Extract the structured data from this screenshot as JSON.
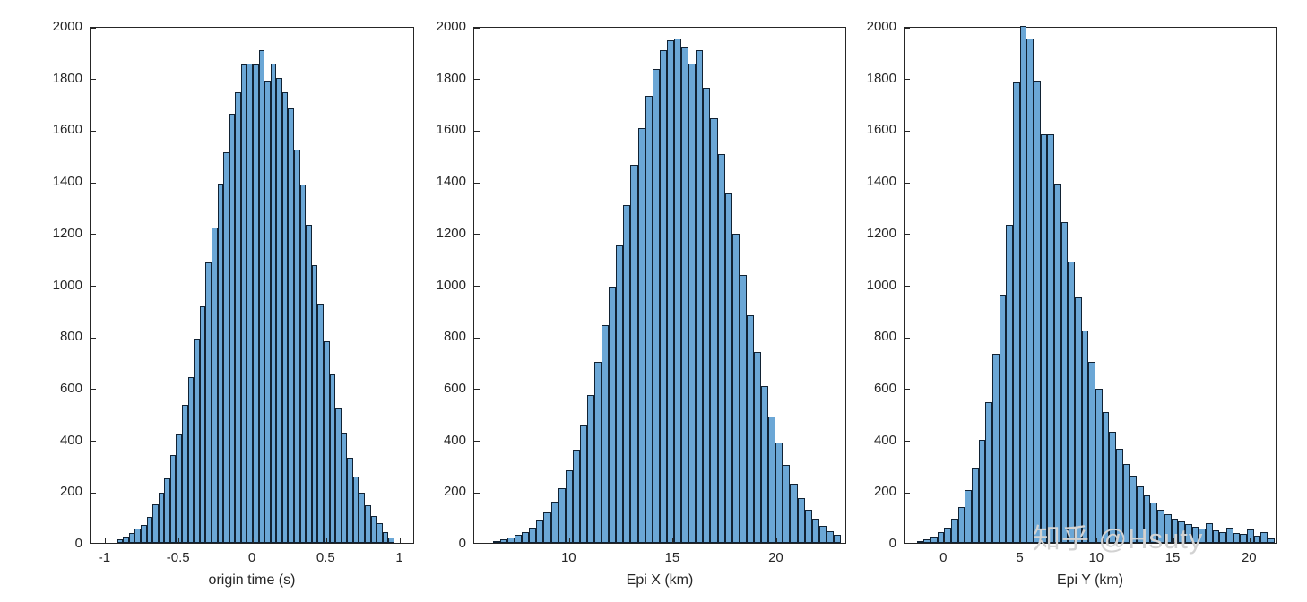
{
  "figure": {
    "background": "#ffffff",
    "watermark": {
      "text": "知乎 @Hsuty",
      "color": "#d2d2d2"
    }
  },
  "style": {
    "bar_fill": "#6ba7d6",
    "bar_edge": "#112233",
    "axis_color": "#262626"
  },
  "chart_data": [
    {
      "type": "bar",
      "title": "",
      "xlabel": "origin time (s)",
      "ylabel": "",
      "legend": "none",
      "grid": false,
      "xlim": [
        -1.1,
        1.1
      ],
      "ylim": [
        0,
        2000
      ],
      "xticks": [
        -1,
        -0.5,
        0,
        0.5,
        1
      ],
      "yticks": [
        0,
        200,
        400,
        600,
        800,
        1000,
        1200,
        1400,
        1600,
        1800,
        2000
      ],
      "bins": {
        "start": -0.92,
        "width": 0.04
      },
      "counts": [
        15,
        26,
        38,
        54,
        70,
        100,
        150,
        195,
        250,
        340,
        420,
        535,
        640,
        790,
        915,
        1085,
        1220,
        1390,
        1510,
        1660,
        1745,
        1850,
        1855,
        1850,
        1905,
        1790,
        1855,
        1800,
        1745,
        1680,
        1520,
        1385,
        1230,
        1075,
        925,
        780,
        650,
        525,
        425,
        330,
        255,
        195,
        145,
        105,
        75,
        40,
        20
      ]
    },
    {
      "type": "bar",
      "title": "",
      "xlabel": "Epi X (km)",
      "ylabel": "",
      "legend": "none",
      "grid": false,
      "xlim": [
        5.4,
        23.4
      ],
      "ylim": [
        0,
        2000
      ],
      "xticks": [
        10,
        15,
        20
      ],
      "yticks": [
        0,
        200,
        400,
        600,
        800,
        1000,
        1200,
        1400,
        1600,
        1800,
        2000
      ],
      "bins": {
        "start": 6.3,
        "width": 0.35
      },
      "counts": [
        8,
        14,
        20,
        30,
        42,
        60,
        85,
        118,
        160,
        212,
        282,
        362,
        458,
        572,
        700,
        842,
        990,
        1150,
        1308,
        1462,
        1605,
        1730,
        1832,
        1905,
        1945,
        1950,
        1918,
        1855,
        1905,
        1762,
        1642,
        1505,
        1352,
        1195,
        1035,
        882,
        738,
        605,
        490,
        388,
        300,
        230,
        172,
        128,
        92,
        65,
        46,
        30
      ]
    },
    {
      "type": "bar",
      "title": "",
      "xlabel": "Epi Y (km)",
      "ylabel": "",
      "legend": "none",
      "grid": false,
      "xlim": [
        -2.6,
        21.8
      ],
      "ylim": [
        0,
        2000
      ],
      "xticks": [
        0,
        5,
        10,
        15,
        20
      ],
      "yticks": [
        0,
        200,
        400,
        600,
        800,
        1000,
        1200,
        1400,
        1600,
        1800,
        2000
      ],
      "bins": {
        "start": -1.8,
        "width": 0.45
      },
      "counts": [
        8,
        15,
        25,
        40,
        60,
        95,
        140,
        205,
        290,
        400,
        545,
        730,
        960,
        1230,
        1780,
        2000,
        1950,
        1790,
        1580,
        1580,
        1390,
        1240,
        1090,
        950,
        820,
        700,
        595,
        505,
        430,
        365,
        305,
        260,
        220,
        185,
        155,
        130,
        112,
        95,
        82,
        72,
        62,
        55,
        75,
        48,
        42,
        60,
        38,
        33,
        52,
        28,
        42,
        18
      ]
    }
  ]
}
